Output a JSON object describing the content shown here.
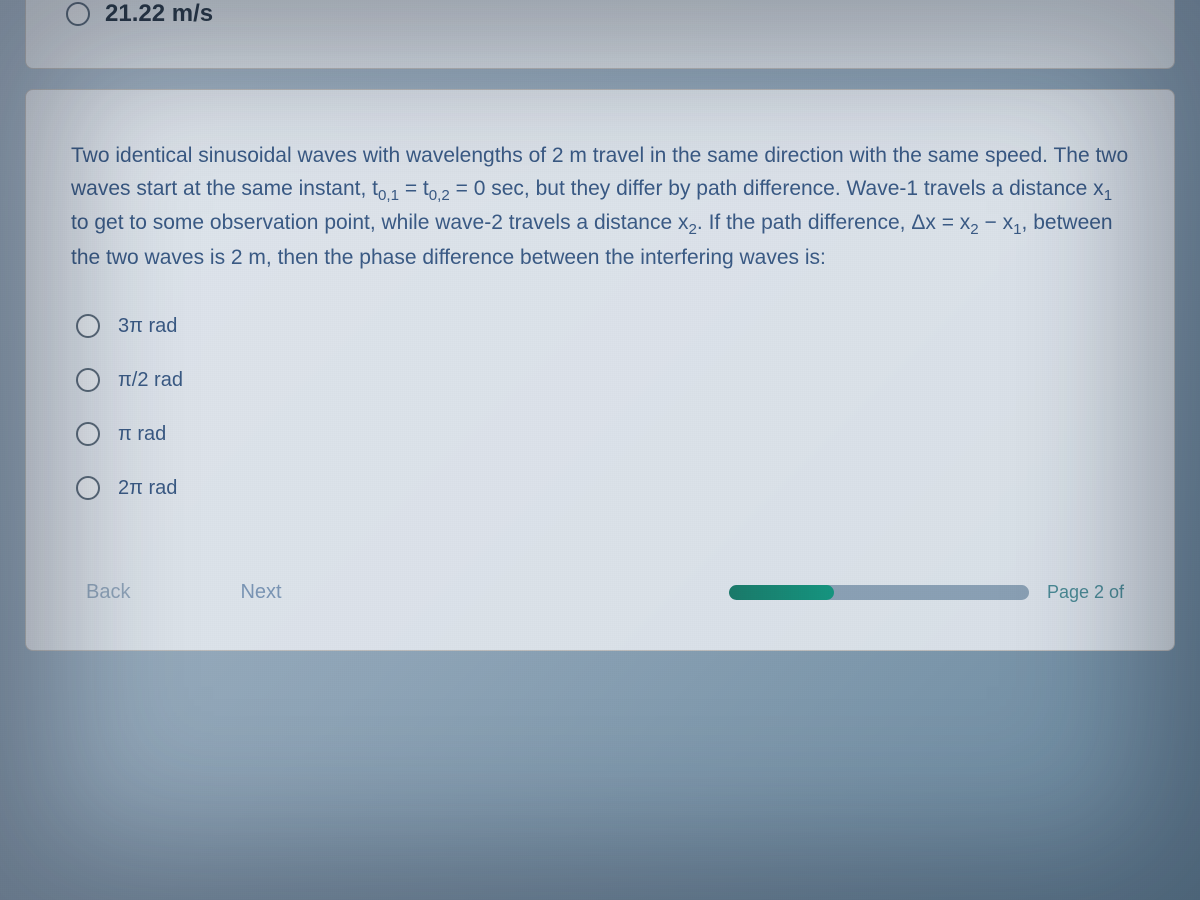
{
  "top_card": {
    "option_label": "21.22 m/s"
  },
  "main_card": {
    "question": {
      "part1": "Two identical sinusoidal waves with wavelengths of 2 m travel in the same direction with the same speed. The two waves start at the same instant, t",
      "sub1": "0,1",
      "part2": " = t",
      "sub2": "0,2",
      "part3": " = 0 sec, but they differ by path difference. Wave-1 travels a distance x",
      "sub3": "1",
      "part4": " to get to some observation point, while wave-2 travels a distance x",
      "sub4": "2",
      "part5": ". If the path difference, Δx = x",
      "sub5": "2",
      "part6": " − x",
      "sub6": "1",
      "part7": ", between the two waves is 2 m, then the phase difference between the interfering waves is:"
    },
    "options": [
      "3π rad",
      "π/2 rad",
      "π rad",
      "2π rad"
    ]
  },
  "nav": {
    "back": "Back",
    "next": "Next",
    "page_indicator": "Page 2 of"
  },
  "progress": {
    "percent": 35,
    "bar_bg": "#8aa0b5",
    "fill_color": "#159580"
  },
  "colors": {
    "card_bg": "rgba(230,235,240,0.88)",
    "text_primary": "#3a5a85",
    "radio_border": "#5a6a7a",
    "nav_btn": "#7a95b5"
  }
}
